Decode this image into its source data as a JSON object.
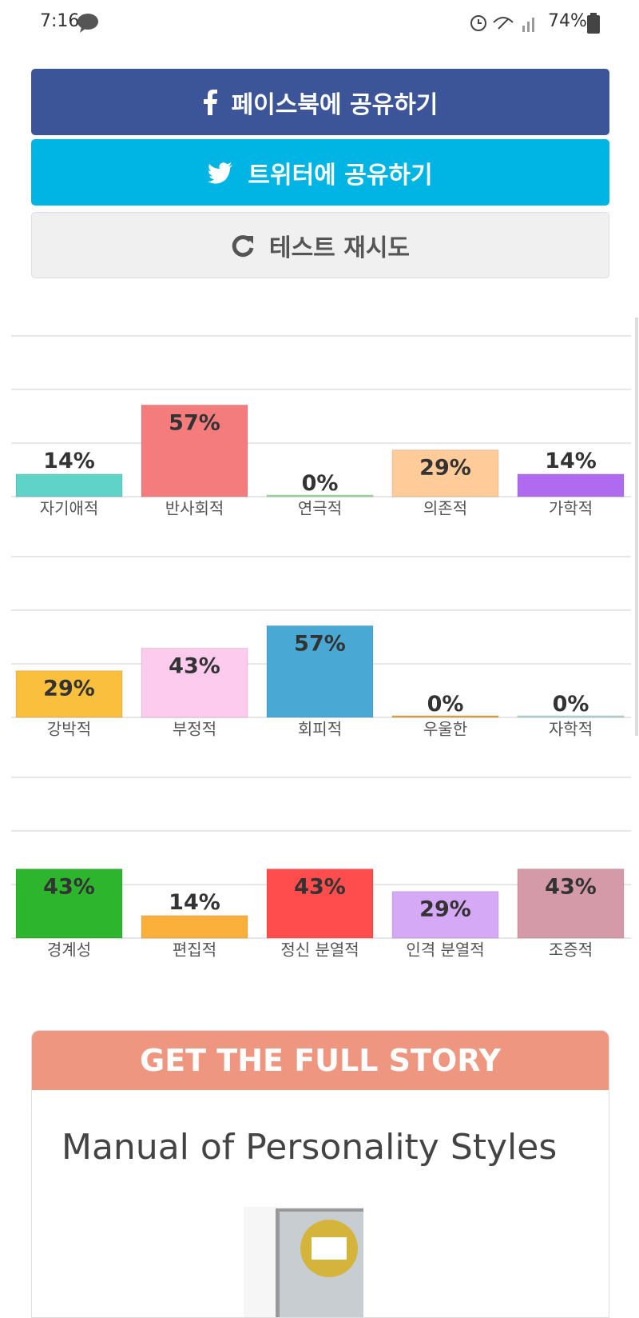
{
  "status_bar": {
    "time": "7:16",
    "battery": "74%"
  },
  "buttons": {
    "facebook": "페이스북에 공유하기",
    "twitter": "트위터에 공유하기",
    "retry": "테스트 재시도"
  },
  "chart_data": [
    {
      "type": "bar",
      "categories": [
        "자기애적",
        "반사회적",
        "연극적",
        "의존적",
        "가학적"
      ],
      "values": [
        14,
        57,
        0,
        29,
        14
      ],
      "value_labels": [
        "14%",
        "57%",
        "0%",
        "29%",
        "14%"
      ],
      "colors": [
        "#5fd3c8",
        "#f47c7c",
        "#9ee09e",
        "#ffcc99",
        "#b06af0"
      ],
      "ylim": [
        0,
        100
      ],
      "yticks": [
        0,
        33.3,
        66.7,
        100
      ],
      "grid": true
    },
    {
      "type": "bar",
      "categories": [
        "강박적",
        "부정적",
        "회피적",
        "우울한",
        "자학적"
      ],
      "values": [
        29,
        43,
        57,
        0,
        0
      ],
      "value_labels": [
        "29%",
        "43%",
        "57%",
        "0%",
        "0%"
      ],
      "colors": [
        "#fbbf3e",
        "#fccbee",
        "#4aa9d4",
        "#e8a63a",
        "#b8dcd8"
      ],
      "ylim": [
        0,
        100
      ],
      "yticks": [
        0,
        33.3,
        66.7,
        100
      ],
      "grid": true
    },
    {
      "type": "bar",
      "categories": [
        "경계성",
        "편집적",
        "정신 분열적",
        "인격 분열적",
        "조증적"
      ],
      "values": [
        43,
        14,
        43,
        29,
        43
      ],
      "value_labels": [
        "43%",
        "14%",
        "43%",
        "29%",
        "43%"
      ],
      "colors": [
        "#2db52d",
        "#fbb03b",
        "#ff4d4d",
        "#d5a9f5",
        "#d59aa8"
      ],
      "ylim": [
        0,
        100
      ],
      "yticks": [
        0,
        33.3,
        66.7,
        100
      ],
      "grid": true
    }
  ],
  "promo": {
    "header": "GET THE FULL STORY",
    "title": "Manual of Personality Styles"
  }
}
